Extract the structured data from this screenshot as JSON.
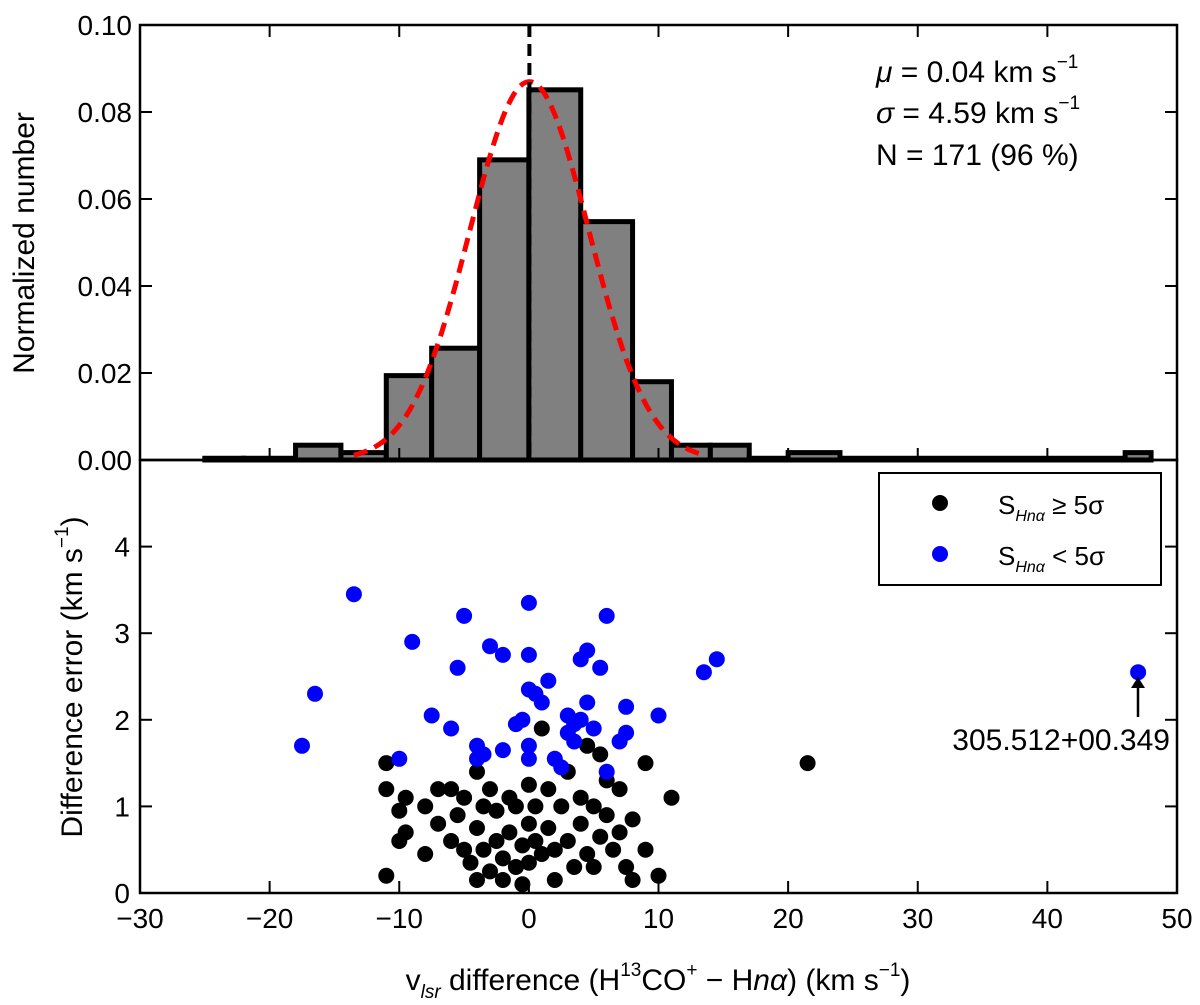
{
  "colors": {
    "bar_fill": "#808080",
    "bar_edge": "#000000",
    "fit_line": "#ff0000",
    "mean_line": "#000000",
    "strong": "#000000",
    "weak": "#0000ff"
  },
  "chart_data": [
    {
      "type": "bar",
      "panel": "top",
      "ylabel": "Normalized number",
      "xlim": [
        -30,
        50
      ],
      "ylim": [
        0,
        0.1
      ],
      "yticks": [
        "0.00",
        "0.02",
        "0.04",
        "0.06",
        "0.08",
        "0.10"
      ],
      "bin_edges": [
        -25,
        -22,
        -18,
        -14.5,
        -11,
        -7.5,
        -3.8,
        0,
        4,
        8,
        11,
        14,
        17,
        20,
        24,
        46,
        48
      ],
      "values": [
        0.0004,
        0.0004,
        0.0034,
        0.0017,
        0.0194,
        0.0257,
        0.069,
        0.0851,
        0.0548,
        0.018,
        0.0034,
        0.0034,
        0.0004,
        0.0017,
        0.0004,
        0.0017
      ],
      "gaussian_fit": {
        "mu": 0.04,
        "sigma": 4.59,
        "peak": 0.087,
        "range": [
          -13.5,
          13.5
        ]
      },
      "mean_marker_x": 0.04,
      "annotations": {
        "mu_line": [
          "μ",
          " = 0.04 km s",
          "−1"
        ],
        "sigma_line": [
          "σ",
          " = 4.59 km s",
          "−1"
        ],
        "n_line": "N = 171 (96 %)"
      }
    },
    {
      "type": "scatter",
      "panel": "bottom",
      "ylabel": [
        "Difference error (km s",
        "−1",
        ")"
      ],
      "xlabel": [
        "v",
        "lsr",
        " difference (H",
        "13",
        "CO",
        "+",
        " − H",
        "nα",
        ") (km s",
        "−1",
        ")"
      ],
      "xlim": [
        -30,
        50
      ],
      "ylim": [
        0,
        5
      ],
      "xticks": [
        "−30",
        "−20",
        "−10",
        "0",
        "10",
        "20",
        "30",
        "40",
        "50"
      ],
      "yticks": [
        "0",
        "1",
        "2",
        "3",
        "4"
      ],
      "legend": [
        {
          "prefix": "S",
          "sub": "Hnα",
          "relation": " ≥ 5σ"
        },
        {
          "prefix": "S",
          "sub": "Hnα",
          "relation": " < 5σ"
        }
      ],
      "series": [
        {
          "name": "S_Hnα ≥ 5σ",
          "points": [
            [
              -11,
              1.5
            ],
            [
              -11,
              1.2
            ],
            [
              -11,
              0.2
            ],
            [
              -10,
              0.95
            ],
            [
              -10,
              0.6
            ],
            [
              -9.5,
              1.1
            ],
            [
              -9.5,
              0.7
            ],
            [
              -8,
              1.0
            ],
            [
              -8,
              0.45
            ],
            [
              -7,
              1.2
            ],
            [
              -7,
              0.8
            ],
            [
              -6,
              0.6
            ],
            [
              -6,
              1.2
            ],
            [
              -5.5,
              0.9
            ],
            [
              -5,
              0.5
            ],
            [
              -5,
              1.1
            ],
            [
              -4.5,
              0.35
            ],
            [
              -4,
              0.75
            ],
            [
              -4,
              1.4
            ],
            [
              -4,
              0.15
            ],
            [
              -3.5,
              1.0
            ],
            [
              -3.5,
              0.5
            ],
            [
              -3,
              0.25
            ],
            [
              -3,
              1.2
            ],
            [
              -2.5,
              0.6
            ],
            [
              -2.5,
              0.95
            ],
            [
              -2,
              0.4
            ],
            [
              -2,
              0.15
            ],
            [
              -1.5,
              1.1
            ],
            [
              -1.5,
              0.7
            ],
            [
              -1,
              0.3
            ],
            [
              -1,
              1.0
            ],
            [
              -0.5,
              0.55
            ],
            [
              -0.5,
              0.1
            ],
            [
              0,
              1.25
            ],
            [
              0,
              0.8
            ],
            [
              0,
              0.35
            ],
            [
              0.5,
              0.6
            ],
            [
              0.5,
              1.0
            ],
            [
              1,
              0.45
            ],
            [
              1,
              1.9
            ],
            [
              1.5,
              0.75
            ],
            [
              1.5,
              1.2
            ],
            [
              2,
              0.15
            ],
            [
              2,
              0.5
            ],
            [
              2.5,
              1.0
            ],
            [
              3,
              0.6
            ],
            [
              3,
              1.4
            ],
            [
              3.5,
              0.3
            ],
            [
              4,
              0.8
            ],
            [
              4,
              1.1
            ],
            [
              4.5,
              0.45
            ],
            [
              4.5,
              1.7
            ],
            [
              5,
              0.3
            ],
            [
              5,
              1.0
            ],
            [
              5.5,
              0.65
            ],
            [
              5.5,
              1.6
            ],
            [
              6,
              0.9
            ],
            [
              6,
              1.3
            ],
            [
              6.5,
              0.5
            ],
            [
              7,
              0.7
            ],
            [
              7,
              1.2
            ],
            [
              7.5,
              0.3
            ],
            [
              8,
              0.85
            ],
            [
              8,
              0.15
            ],
            [
              9,
              0.5
            ],
            [
              9,
              1.5
            ],
            [
              10,
              0.2
            ],
            [
              11,
              1.1
            ],
            [
              21.5,
              1.5
            ]
          ]
        },
        {
          "name": "S_Hnα < 5σ",
          "points": [
            [
              -17.5,
              1.7
            ],
            [
              -16.5,
              2.3
            ],
            [
              -13.5,
              3.45
            ],
            [
              -10,
              1.55
            ],
            [
              -9,
              2.9
            ],
            [
              -7.5,
              2.05
            ],
            [
              -6,
              1.9
            ],
            [
              -5.5,
              2.6
            ],
            [
              -5,
              3.2
            ],
            [
              -4,
              1.55
            ],
            [
              -4,
              1.7
            ],
            [
              -3.5,
              1.6
            ],
            [
              -3,
              2.85
            ],
            [
              -2,
              2.75
            ],
            [
              -2,
              1.65
            ],
            [
              -1,
              1.95
            ],
            [
              -0.5,
              2.0
            ],
            [
              0,
              1.55
            ],
            [
              0,
              3.35
            ],
            [
              0,
              2.75
            ],
            [
              0,
              2.35
            ],
            [
              0,
              1.7
            ],
            [
              0.5,
              2.3
            ],
            [
              1,
              2.2
            ],
            [
              1.5,
              2.45
            ],
            [
              2,
              1.55
            ],
            [
              2.5,
              1.45
            ],
            [
              3,
              2.05
            ],
            [
              3,
              1.85
            ],
            [
              3.5,
              1.95
            ],
            [
              3.5,
              1.75
            ],
            [
              4,
              2.7
            ],
            [
              4,
              2.0
            ],
            [
              4.5,
              2.2
            ],
            [
              4.5,
              2.8
            ],
            [
              5,
              1.9
            ],
            [
              5.5,
              2.6
            ],
            [
              6,
              3.2
            ],
            [
              6,
              1.4
            ],
            [
              7,
              1.75
            ],
            [
              7.5,
              1.85
            ],
            [
              7.5,
              2.15
            ],
            [
              10,
              2.05
            ],
            [
              13.5,
              2.55
            ],
            [
              14.5,
              2.7
            ],
            [
              47,
              2.55
            ]
          ]
        }
      ],
      "callout": {
        "text": "305.512+00.349",
        "x": 47,
        "y": 2.55
      }
    }
  ]
}
